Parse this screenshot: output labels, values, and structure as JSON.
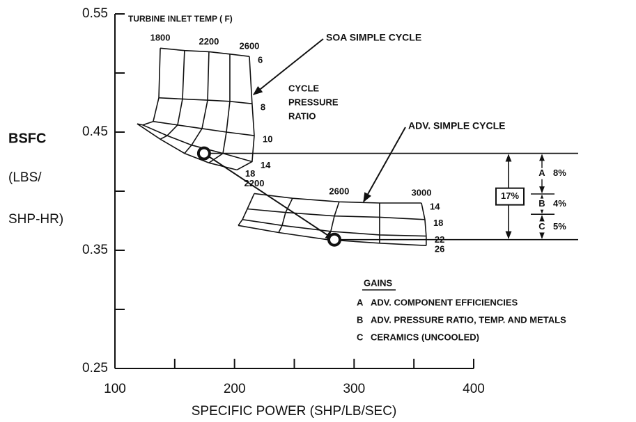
{
  "chart_data": {
    "type": "carpet",
    "xlabel": "SPECIFIC POWER (SHP/LB/SEC)",
    "ylabel": [
      "BSFC",
      "(LBS/",
      "SHP-HR)"
    ],
    "xlim": [
      100,
      400
    ],
    "ylim": [
      0.25,
      0.55
    ],
    "xticks": [
      100,
      200,
      300,
      400
    ],
    "xminor_ticks": [
      150,
      250,
      350
    ],
    "yticks": [
      0.25,
      0.35,
      0.45,
      0.55
    ],
    "yminor_ticks": [
      0.3,
      0.4,
      0.5
    ],
    "color": "#111111",
    "temp_axis_label": "TURBINE INLET TEMP ( F)",
    "ratio_axis_label": [
      "CYCLE",
      "PRESSURE",
      "RATIO"
    ],
    "carpets": [
      {
        "name": "SOA SIMPLE CYCLE",
        "temp_labels": [
          "1800",
          null,
          "2200",
          null,
          "2600"
        ],
        "ratio_labels": [
          "6",
          "8",
          "10",
          "14",
          "18"
        ],
        "x": [
          [
            137.9,
            158.2,
            178.6,
            196.1,
            212.4
          ],
          [
            136.7,
            156.5,
            177.5,
            196.1,
            214.7
          ],
          [
            132.0,
            152.4,
            172.8,
            193.2,
            216.5
          ],
          [
            123.3,
            143.7,
            164.1,
            190.3,
            214.7
          ],
          [
            118.6,
            137.9,
            158.2,
            178.6,
            201.9
          ]
        ],
        "y": [
          [
            0.521,
            0.519,
            0.518,
            0.516,
            0.514
          ],
          [
            0.479,
            0.478,
            0.477,
            0.476,
            0.474
          ],
          [
            0.459,
            0.456,
            0.453,
            0.45,
            0.447
          ],
          [
            0.456,
            0.447,
            0.439,
            0.432,
            0.425
          ],
          [
            0.457,
            0.444,
            0.432,
            0.424,
            0.418
          ]
        ],
        "point": {
          "x": 174.5,
          "y": 0.432
        }
      },
      {
        "name": "ADV. SIMPLE CYCLE",
        "temp_labels": [
          "2200",
          null,
          "2600",
          null,
          "3000"
        ],
        "ratio_labels": [
          "14",
          "18",
          "22",
          "26"
        ],
        "x": [
          [
            216.5,
            248.5,
            287.5,
            321.3,
            356.3
          ],
          [
            210.7,
            242.7,
            283.5,
            321.3,
            359.2
          ],
          [
            206.6,
            239.8,
            280.5,
            321.3,
            360.3
          ],
          [
            203.1,
            236.9,
            277.6,
            321.3,
            360.3
          ]
        ],
        "y": [
          [
            0.398,
            0.394,
            0.391,
            0.39,
            0.39
          ],
          [
            0.385,
            0.382,
            0.379,
            0.378,
            0.376
          ],
          [
            0.376,
            0.371,
            0.366,
            0.363,
            0.362
          ],
          [
            0.371,
            0.365,
            0.359,
            0.356,
            0.354
          ]
        ],
        "point": {
          "x": 283.5,
          "y": 0.359
        }
      }
    ],
    "gains": {
      "title": "GAINS",
      "total": 17,
      "total_label": "17%",
      "segments": [
        {
          "key": "A",
          "value": 8,
          "value_label": "8%",
          "name": "ADV. COMPONENT EFFICIENCIES"
        },
        {
          "key": "B",
          "value": 4,
          "value_label": "4%",
          "name": "ADV. PRESSURE RATIO, TEMP. AND METALS"
        },
        {
          "key": "C",
          "value": 5,
          "value_label": "5%",
          "name": "CERAMICS (UNCOOLED)"
        }
      ]
    }
  }
}
